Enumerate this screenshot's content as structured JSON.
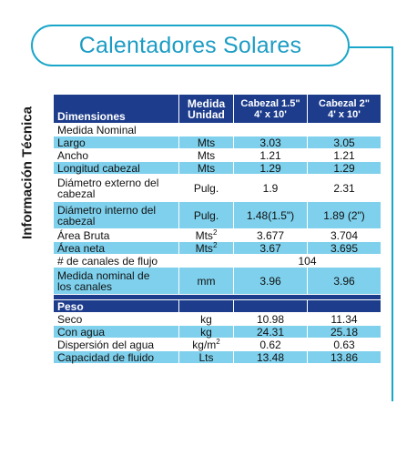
{
  "title": "Calentadores Solares",
  "side_label": "Información Técnica",
  "header": {
    "dimensiones": "Dimensiones",
    "medida_line1": "Medida",
    "medida_line2": "Unidad",
    "cab1_line1": "Cabezal 1.5\"",
    "cab1_line2": "4' x 10'",
    "cab2_line1": "Cabezal 2\"",
    "cab2_line2": "4' x 10'"
  },
  "rows": [
    {
      "label": "Medida Nominal",
      "unit": "",
      "v1": "",
      "v2": ""
    },
    {
      "label": "Largo",
      "unit": "Mts",
      "v1": "3.03",
      "v2": "3.05"
    },
    {
      "label": "Ancho",
      "unit": "Mts",
      "v1": "1.21",
      "v2": "1.21"
    },
    {
      "label": "Longitud cabezal",
      "unit": "Mts",
      "v1": "1.29",
      "v2": "1.29"
    },
    {
      "label1": "Diámetro externo del",
      "label2": "cabezal",
      "unit": "Pulg.",
      "v1": "1.9",
      "v2": "2.31"
    },
    {
      "label1": "Diámetro interno del",
      "label2": "cabezal",
      "unit": "Pulg.",
      "v1": "1.48(1.5\")",
      "v2": "1.89 (2\")"
    },
    {
      "label": "Área Bruta",
      "unit": "Mts",
      "unit_sup": "2",
      "v1": "3.677",
      "v2": "3.704"
    },
    {
      "label": "Área neta",
      "unit": "Mts",
      "unit_sup": "2",
      "v1": "3.67",
      "v2": "3.695"
    },
    {
      "label": "# de canales de flujo",
      "unit": "",
      "v_merged": "104"
    },
    {
      "label1": "Medida nominal de",
      "label2": "los canales",
      "unit": "mm",
      "v1": "3.96",
      "v2": "3.96"
    }
  ],
  "peso_header": "Peso",
  "peso_rows": [
    {
      "label": "Seco",
      "unit": "kg",
      "v1": "10.98",
      "v2": "11.34"
    },
    {
      "label": "Con agua",
      "unit": "kg",
      "v1": "24.31",
      "v2": "25.18"
    },
    {
      "label": "Dispersión del agua",
      "unit": "kg/m",
      "unit_sup": "2",
      "v1": "0.62",
      "v2": "0.63"
    },
    {
      "label": "Capacidad de fluido",
      "unit": "Lts",
      "v1": "13.48",
      "v2": "13.86"
    }
  ],
  "colors": {
    "accent": "#1aa6c9",
    "header_bg": "#1d3d8c",
    "row_blue": "#7ed0ec"
  }
}
